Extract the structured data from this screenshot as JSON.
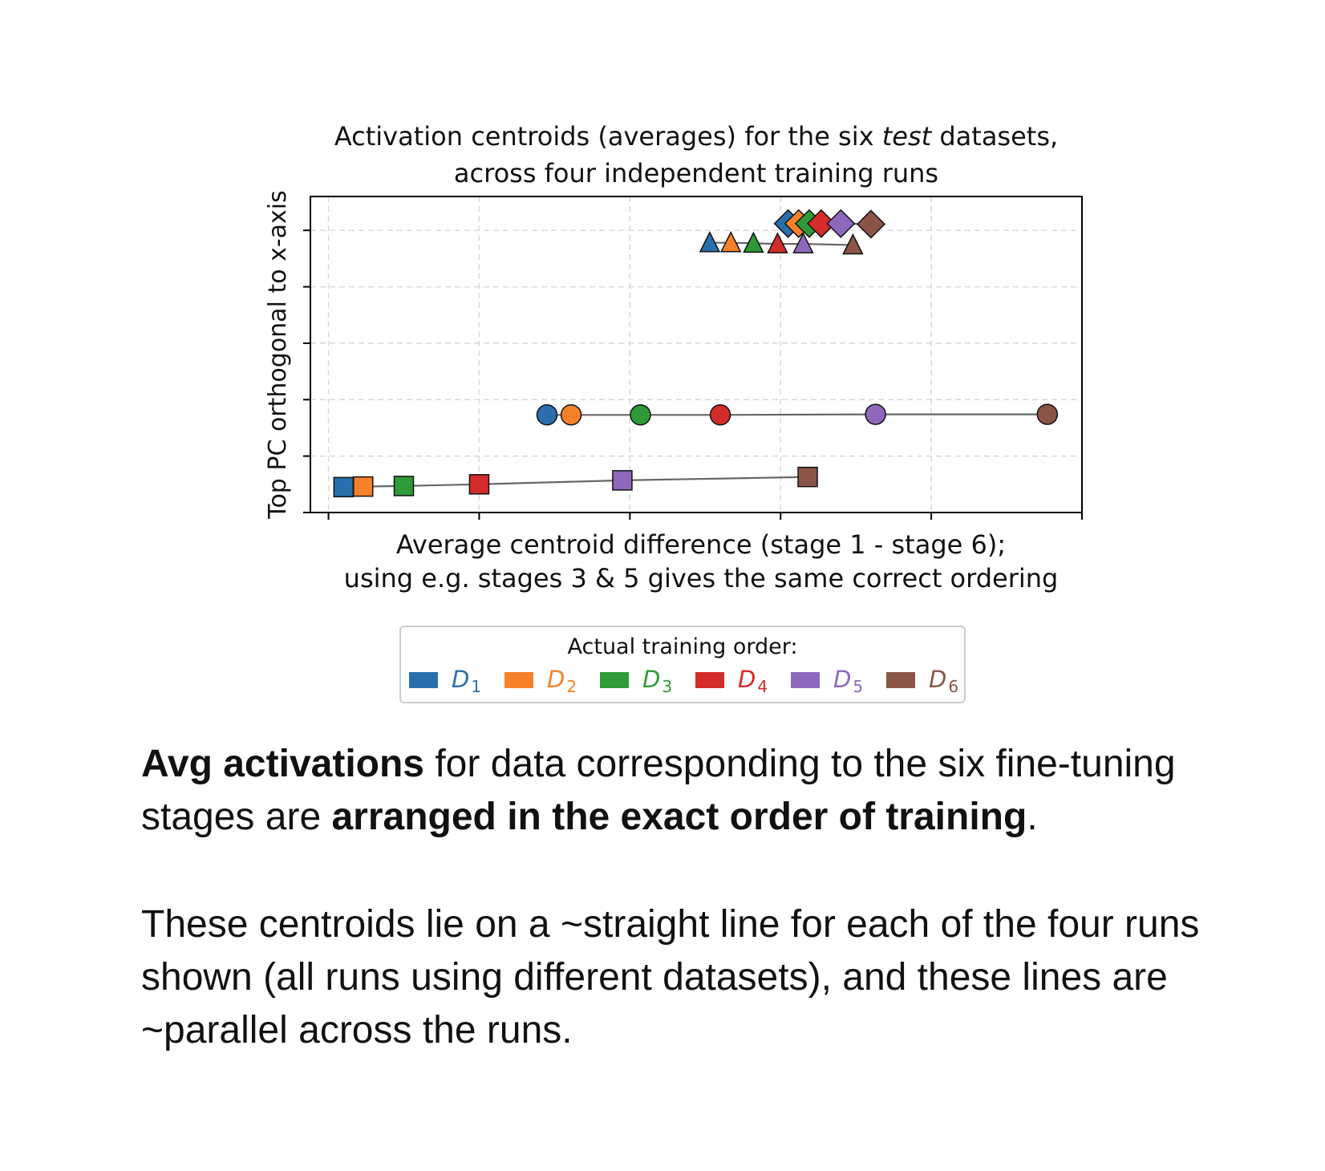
{
  "chart_data": {
    "type": "scatter",
    "title_line1_pre": "Activation centroids (averages) for the six ",
    "title_line1_em": "test",
    "title_line1_post": " datasets,",
    "title_line2": "across four independent training runs",
    "xlabel_line1": "Average centroid difference (stage 1 - stage 6);",
    "xlabel_line2": "using e.g. stages 3 & 5 gives the same correct ordering",
    "ylabel": "Top PC orthogonal to x-axis",
    "xlim": [
      -0.12,
      5.0
    ],
    "ylim": [
      0,
      5.6
    ],
    "x_ticks": [
      0,
      1,
      2,
      3,
      4,
      5
    ],
    "y_ticks": [
      0,
      1,
      2,
      3,
      4,
      5
    ],
    "grid": true,
    "legend": {
      "title": "Actual training order:",
      "placement": "below",
      "entries": [
        {
          "name": "D",
          "sub": "1",
          "color": "#2a6fad"
        },
        {
          "name": "D",
          "sub": "2",
          "color": "#f5812a"
        },
        {
          "name": "D",
          "sub": "3",
          "color": "#2e9a38"
        },
        {
          "name": "D",
          "sub": "4",
          "color": "#d42b2b"
        },
        {
          "name": "D",
          "sub": "5",
          "color": "#8e68bd"
        },
        {
          "name": "D",
          "sub": "6",
          "color": "#8a5547"
        }
      ]
    },
    "series": [
      {
        "marker": "square",
        "x": [
          0.1,
          0.23,
          0.5,
          1.0,
          1.95,
          3.18
        ],
        "y": [
          0.45,
          0.46,
          0.47,
          0.5,
          0.57,
          0.63
        ]
      },
      {
        "marker": "circle",
        "x": [
          1.45,
          1.61,
          2.07,
          2.6,
          3.63,
          4.77
        ],
        "y": [
          1.73,
          1.73,
          1.73,
          1.73,
          1.74,
          1.74
        ]
      },
      {
        "marker": "triangle",
        "x": [
          2.53,
          2.67,
          2.82,
          2.98,
          3.15,
          3.48
        ],
        "y": [
          4.78,
          4.78,
          4.77,
          4.76,
          4.76,
          4.74
        ]
      },
      {
        "marker": "diamond",
        "x": [
          3.05,
          3.12,
          3.19,
          3.27,
          3.4,
          3.6
        ],
        "y": [
          5.12,
          5.12,
          5.12,
          5.12,
          5.12,
          5.11
        ]
      }
    ]
  },
  "caption": {
    "p1_bold1": "Avg activations",
    "p1_text1": " for data corresponding to the six fine-tuning stages are ",
    "p1_bold2": "arranged in the exact order of training",
    "p1_text2": ".",
    "p2": "These centroids lie on a ~straight line for each of the four runs shown (all runs using different datasets), and these lines are ~parallel across the runs."
  }
}
